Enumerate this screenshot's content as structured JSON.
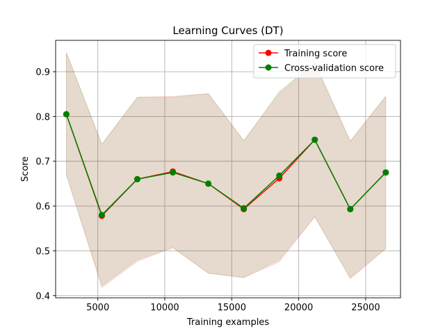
{
  "chart_data": {
    "type": "line",
    "title": "Learning Curves (DT)",
    "xlabel": "Training examples",
    "ylabel": "Score",
    "xlim": [
      1850,
      27600
    ],
    "ylim": [
      0.395,
      0.97
    ],
    "xticks": [
      5000,
      10000,
      15000,
      20000,
      25000
    ],
    "yticks": [
      0.4,
      0.5,
      0.6,
      0.7,
      0.8,
      0.9
    ],
    "xtick_labels": [
      "5000",
      "10000",
      "15000",
      "20000",
      "25000"
    ],
    "ytick_labels": [
      "0.4",
      "0.5",
      "0.6",
      "0.7",
      "0.8",
      "0.9"
    ],
    "grid": true,
    "legend_position": "top-right",
    "x": [
      2650,
      5300,
      7950,
      10600,
      13250,
      15900,
      18550,
      21200,
      23850,
      26500
    ],
    "series": [
      {
        "name": "Training score",
        "color": "#ff0000",
        "values": [
          0.805,
          0.578,
          0.66,
          0.677,
          0.65,
          0.593,
          0.662,
          0.748,
          0.593,
          0.675
        ],
        "band_lower": [
          0.67,
          0.418,
          0.476,
          0.507,
          0.45,
          0.44,
          0.475,
          0.576,
          0.437,
          0.505
        ],
        "band_upper": [
          0.943,
          0.738,
          0.843,
          0.845,
          0.851,
          0.746,
          0.852,
          0.92,
          0.745,
          0.845
        ]
      },
      {
        "name": "Cross-validation score",
        "color": "#008000",
        "values": [
          0.805,
          0.58,
          0.66,
          0.675,
          0.65,
          0.595,
          0.668,
          0.748,
          0.593,
          0.675
        ],
        "band_lower": [
          0.67,
          0.422,
          0.48,
          0.507,
          0.45,
          0.44,
          0.48,
          0.576,
          0.44,
          0.505
        ],
        "band_upper": [
          0.943,
          0.738,
          0.843,
          0.843,
          0.851,
          0.746,
          0.856,
          0.92,
          0.745,
          0.845
        ]
      }
    ]
  }
}
